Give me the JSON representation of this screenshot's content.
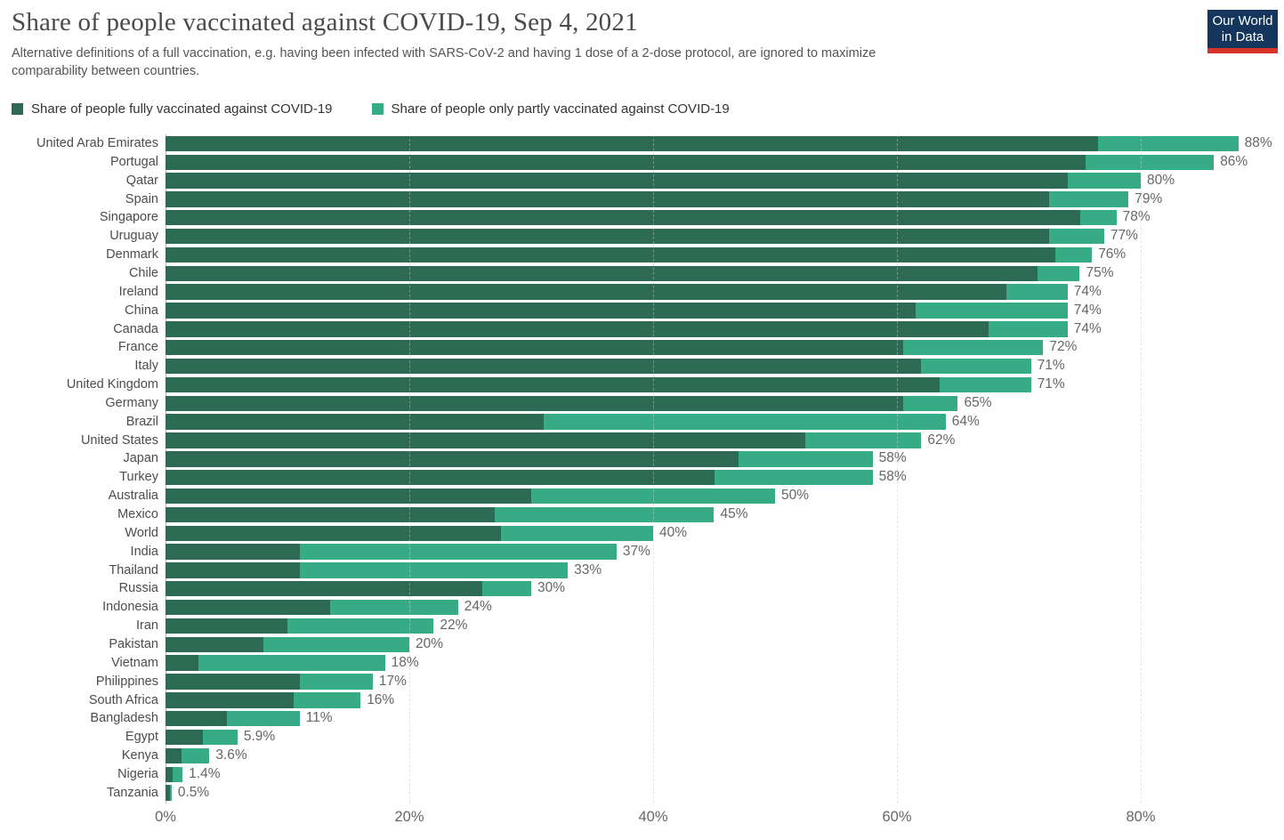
{
  "header": {
    "title": "Share of people vaccinated against COVID-19, Sep 4, 2021",
    "subtitle_line1": "Alternative definitions of a full vaccination, e.g. having been infected with SARS-CoV-2 and having 1 dose of a 2-dose protocol, are ignored to maximize",
    "subtitle_line2": "comparability between countries."
  },
  "logo": {
    "line1": "Our World",
    "line2": "in Data",
    "bg_color": "#15365c",
    "accent_color": "#d7342c"
  },
  "legend": [
    {
      "label": "Share of people fully vaccinated against COVID-19",
      "color": "#2d6a53"
    },
    {
      "label": "Share of people only partly vaccinated against COVID-19",
      "color": "#36ab86"
    }
  ],
  "chart_data": {
    "type": "bar",
    "orientation": "horizontal",
    "stacked": true,
    "unit": "%",
    "xlim": [
      0,
      91
    ],
    "grid": "vertical-dashed",
    "x_ticks": [
      {
        "label": "0%",
        "value": 0
      },
      {
        "label": "20%",
        "value": 20
      },
      {
        "label": "40%",
        "value": 40
      },
      {
        "label": "60%",
        "value": 60
      },
      {
        "label": "80%",
        "value": 80
      }
    ],
    "categories": [
      "United Arab Emirates",
      "Portugal",
      "Qatar",
      "Spain",
      "Singapore",
      "Uruguay",
      "Denmark",
      "Chile",
      "Ireland",
      "China",
      "Canada",
      "France",
      "Italy",
      "United Kingdom",
      "Germany",
      "Brazil",
      "United States",
      "Japan",
      "Turkey",
      "Australia",
      "Mexico",
      "World",
      "India",
      "Thailand",
      "Russia",
      "Indonesia",
      "Iran",
      "Pakistan",
      "Vietnam",
      "Philippines",
      "South Africa",
      "Bangladesh",
      "Egypt",
      "Kenya",
      "Nigeria",
      "Tanzania"
    ],
    "series": [
      {
        "name": "Share of people fully vaccinated against COVID-19",
        "color": "#2d6a53",
        "values": [
          76.5,
          75.5,
          74,
          72.5,
          75,
          72.5,
          73,
          71.5,
          69,
          61.5,
          67.5,
          60.5,
          62,
          63.5,
          60.5,
          31,
          52.5,
          47,
          45,
          30,
          27,
          27.5,
          11,
          11,
          26,
          13.5,
          10,
          8,
          2.7,
          11,
          10.5,
          5,
          3.1,
          1.3,
          0.6,
          0.4
        ]
      },
      {
        "name": "Share of people only partly vaccinated against COVID-19",
        "color": "#36ab86",
        "values": [
          11.5,
          10.5,
          6,
          6.5,
          3,
          4.5,
          3,
          3.5,
          5,
          12.5,
          6.5,
          11.5,
          9,
          7.5,
          4.5,
          33,
          9.5,
          11,
          13,
          20,
          18,
          12.5,
          26,
          22,
          4,
          10.5,
          12,
          12,
          15.3,
          6,
          5.5,
          6,
          2.8,
          2.3,
          0.8,
          0.1
        ]
      }
    ],
    "totals": [
      88,
      86,
      80,
      79,
      78,
      77,
      76,
      75,
      74,
      74,
      74,
      72,
      71,
      71,
      65,
      64,
      62,
      58,
      58,
      50,
      45,
      40,
      37,
      33,
      30,
      24,
      22,
      20,
      18,
      17,
      16,
      11,
      5.9,
      3.6,
      1.4,
      0.5
    ],
    "total_labels": [
      "88%",
      "86%",
      "80%",
      "79%",
      "78%",
      "77%",
      "76%",
      "75%",
      "74%",
      "74%",
      "74%",
      "72%",
      "71%",
      "71%",
      "65%",
      "64%",
      "62%",
      "58%",
      "58%",
      "50%",
      "45%",
      "40%",
      "37%",
      "33%",
      "30%",
      "24%",
      "22%",
      "20%",
      "18%",
      "17%",
      "16%",
      "11%",
      "5.9%",
      "3.6%",
      "1.4%",
      "0.5%"
    ]
  }
}
